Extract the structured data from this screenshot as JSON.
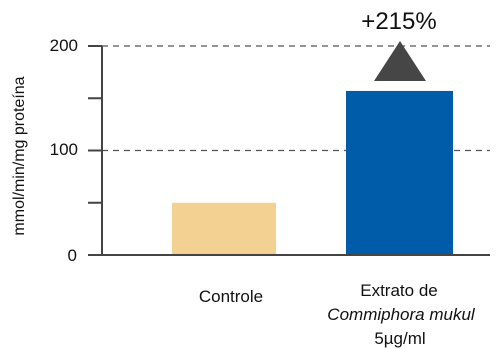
{
  "chart_data": {
    "type": "bar",
    "title": "",
    "xlabel": "",
    "ylabel": "mmol/min/mg  proteína",
    "ylim": [
      0,
      200
    ],
    "yticks": [
      "0",
      "100",
      "200"
    ],
    "grid": "dashed horizontal at 100 and 200",
    "categories": [
      "Controle",
      {
        "line1": "Extrato de",
        "line2": "Commiphora mukul",
        "line3": "5µg/ml"
      }
    ],
    "values": [
      50,
      157
    ],
    "colors": [
      "#F2D193",
      "#005CA9"
    ],
    "annotation": {
      "text": "+215%",
      "arrow_color": "#464646"
    }
  }
}
